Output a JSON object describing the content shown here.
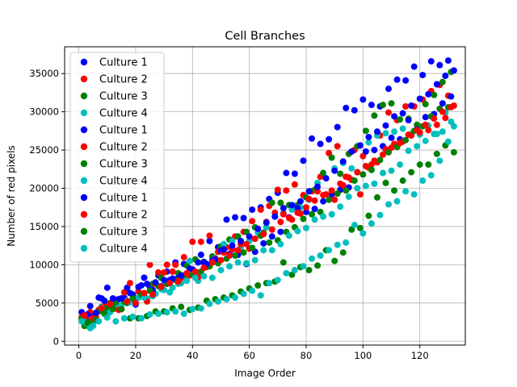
{
  "chart_data": {
    "type": "scatter",
    "title": "Cell Branches",
    "xlabel": "Image Order",
    "ylabel": "Number of red pixels",
    "xlim": [
      -5,
      136
    ],
    "ylim": [
      -500,
      38500
    ],
    "xticks": [
      0,
      20,
      40,
      60,
      80,
      100,
      120
    ],
    "yticks": [
      0,
      5000,
      10000,
      15000,
      20000,
      25000,
      30000,
      35000
    ],
    "grid": true,
    "legend_position": "top-left",
    "series": [
      {
        "name": "Culture 1",
        "color": "#0000ff",
        "x": [
          1,
          4,
          7,
          10,
          13,
          16,
          19,
          22,
          25,
          28,
          31,
          34,
          37,
          40,
          43,
          46,
          49,
          52,
          55,
          58,
          61,
          64,
          67,
          70,
          73,
          76,
          79,
          82,
          85,
          88,
          91,
          94,
          97,
          100,
          103,
          106,
          109,
          112,
          115,
          118,
          121,
          124,
          127,
          130
        ],
        "y": [
          3800,
          4600,
          5700,
          7000,
          5400,
          5700,
          6100,
          7300,
          7100,
          8600,
          9100,
          10300,
          10100,
          9400,
          11300,
          13100,
          12300,
          15900,
          16200,
          16100,
          17200,
          17500,
          18600,
          19400,
          22000,
          21900,
          23600,
          26500,
          25800,
          26400,
          28000,
          30500,
          30200,
          31600,
          30900,
          30700,
          33000,
          34200,
          34100,
          35900,
          34800,
          36600,
          36100,
          36700
        ]
      },
      {
        "name": "Culture 2",
        "color": "#ff0000",
        "x": [
          1,
          4,
          7,
          10,
          13,
          16,
          19,
          22,
          25,
          28,
          31,
          34,
          37,
          40,
          43,
          46,
          49,
          52,
          55,
          58,
          61,
          64,
          67,
          70,
          73,
          76,
          79,
          82,
          85,
          88,
          91,
          94,
          97,
          100,
          103,
          106,
          109,
          112,
          115,
          118,
          121,
          124,
          127,
          130
        ],
        "y": [
          3100,
          3800,
          4100,
          4700,
          4600,
          6400,
          5300,
          5900,
          10000,
          9000,
          10000,
          10000,
          11000,
          13000,
          13000,
          13800,
          11700,
          12300,
          13700,
          14300,
          15700,
          17200,
          17700,
          19800,
          19700,
          20500,
          19100,
          19600,
          21500,
          24600,
          25500,
          21500,
          25000,
          24200,
          23100,
          26900,
          29900,
          28900,
          30700,
          30700,
          31600,
          32700,
          33500,
          32100
        ]
      },
      {
        "name": "Culture 3",
        "color": "#008000",
        "x": [
          2,
          5,
          8,
          11,
          14,
          17,
          20,
          23,
          26,
          29,
          32,
          35,
          38,
          41,
          44,
          47,
          50,
          53,
          56,
          59,
          62,
          65,
          68,
          71,
          74,
          77,
          80,
          83,
          86,
          89,
          92,
          95,
          98,
          101,
          104,
          107,
          110,
          113,
          116,
          119,
          122,
          125,
          128,
          131
        ],
        "y": [
          2000,
          2400,
          4500,
          5000,
          4300,
          5000,
          5500,
          6000,
          7500,
          8300,
          7700,
          8900,
          9900,
          10700,
          10400,
          11100,
          12400,
          13300,
          13700,
          14300,
          14900,
          14200,
          18100,
          18100,
          17800,
          17800,
          18800,
          19800,
          22000,
          24000,
          21900,
          24500,
          25500,
          27500,
          29500,
          30900,
          31100,
          29000,
          29100,
          28300,
          31000,
          32200,
          33900,
          35200
        ]
      },
      {
        "name": "Culture 4",
        "color": "#00bfbf",
        "x": [
          3,
          6,
          9,
          12,
          15,
          18,
          21,
          24,
          27,
          30,
          33,
          36,
          39,
          42,
          45,
          48,
          51,
          54,
          57,
          60,
          63,
          66,
          69,
          72,
          75,
          78,
          81,
          84,
          87,
          90,
          93,
          96,
          99,
          102,
          105,
          108,
          111,
          114,
          117,
          120,
          123,
          126,
          129,
          132
        ],
        "y": [
          2300,
          2700,
          4100,
          4400,
          4700,
          5100,
          5700,
          5600,
          6200,
          6700,
          7000,
          7600,
          10500,
          7900,
          10000,
          10900,
          12700,
          13100,
          12300,
          13100,
          14200,
          14900,
          16300,
          16800,
          17200,
          17500,
          18500,
          20700,
          21300,
          22600,
          23300,
          22600,
          25600,
          26000,
          26900,
          27200,
          27400,
          27800,
          27100,
          27000,
          28200,
          27100,
          29900,
          28100
        ]
      },
      {
        "name": "Culture 1",
        "color": "#0000ff",
        "x": [
          2,
          5,
          8,
          11,
          14,
          17,
          20,
          23,
          26,
          29,
          32,
          35,
          38,
          41,
          44,
          47,
          50,
          53,
          56,
          59,
          62,
          65,
          68,
          71,
          74,
          77,
          80,
          83,
          86,
          89,
          92,
          95,
          98,
          101,
          104,
          107,
          110,
          113,
          116,
          119,
          122,
          125,
          128,
          131
        ],
        "y": [
          3200,
          3200,
          5600,
          4200,
          5500,
          7000,
          4800,
          8300,
          6700,
          7200,
          8000,
          8300,
          8800,
          9100,
          10300,
          10600,
          11800,
          11400,
          11300,
          10100,
          11700,
          12800,
          13700,
          14300,
          16200,
          17400,
          16900,
          17300,
          18300,
          19200,
          19800,
          20100,
          22100,
          24800,
          25000,
          25500,
          26600,
          26400,
          28900,
          27700,
          29300,
          29700,
          31100,
          32000
        ]
      },
      {
        "name": "Culture 2",
        "color": "#ff0000",
        "x": [
          3,
          6,
          9,
          12,
          15,
          18,
          21,
          24,
          27,
          30,
          33,
          36,
          39,
          42,
          45,
          48,
          51,
          54,
          57,
          60,
          63,
          66,
          69,
          72,
          75,
          78,
          81,
          84,
          87,
          90,
          93,
          96,
          99,
          102,
          105,
          108,
          111,
          114,
          117,
          120,
          123,
          126,
          129,
          132
        ],
        "y": [
          2800,
          3200,
          4600,
          5300,
          4200,
          7600,
          6500,
          5200,
          7500,
          9000,
          9100,
          8300,
          8600,
          8400,
          9700,
          10800,
          11600,
          12000,
          12700,
          12100,
          14700,
          15600,
          16800,
          16600,
          15900,
          16700,
          18600,
          19600,
          19200,
          18500,
          20400,
          21100,
          19200,
          22700,
          23400,
          25100,
          25800,
          26100,
          26900,
          27300,
          27600,
          28300,
          29200,
          30800
        ]
      },
      {
        "name": "Culture 3",
        "color": "#008000",
        "x": [
          1,
          4,
          7,
          10,
          13,
          16,
          19,
          22,
          25,
          28,
          31,
          34,
          37,
          40,
          43,
          46,
          49,
          52,
          55,
          58,
          61,
          64,
          67,
          70,
          73,
          76,
          79,
          82,
          85,
          88,
          91,
          94,
          97,
          100,
          103,
          106,
          109,
          112,
          115,
          118,
          121,
          124,
          127,
          130
        ],
        "y": [
          2900,
          2600,
          3900,
          4300,
          4900,
          5200,
          5600,
          6100,
          6600,
          7200,
          7500,
          8000,
          8600,
          8700,
          9100,
          9800,
          10200,
          10800,
          11200,
          11600,
          12200,
          13800,
          12900,
          13200,
          14300,
          14900,
          16000,
          16600,
          16900,
          18500,
          19300,
          19700,
          21000,
          21800,
          22400,
          23700,
          24700,
          25400,
          26300,
          27500,
          28100,
          29400,
          30400,
          30600
        ]
      },
      {
        "name": "Culture 4",
        "color": "#00bfbf",
        "x": [
          2,
          5,
          8,
          11,
          14,
          17,
          20,
          23,
          26,
          29,
          32,
          35,
          38,
          41,
          44,
          47,
          50,
          53,
          56,
          59,
          62,
          65,
          68,
          71,
          74,
          77,
          80,
          83,
          86,
          89,
          92,
          95,
          98,
          101,
          104,
          107,
          110,
          113,
          116,
          119,
          122,
          125,
          128,
          131
        ],
        "y": [
          2500,
          2000,
          4400,
          3800,
          4400,
          5300,
          5000,
          5700,
          5900,
          6800,
          6400,
          7500,
          7900,
          8300,
          8500,
          8300,
          9300,
          9800,
          10300,
          10200,
          10600,
          11900,
          11900,
          12700,
          13800,
          14400,
          14800,
          15900,
          16300,
          16600,
          17600,
          18900,
          20000,
          20300,
          20600,
          22000,
          22300,
          23100,
          24900,
          25500,
          26200,
          27100,
          27400,
          28700
        ]
      },
      {
        "name": "Culture 1",
        "color": "#0000ff",
        "x": [
          3,
          6,
          9,
          12,
          15,
          18,
          21,
          24,
          27,
          30,
          33,
          36,
          39,
          42,
          45,
          48,
          51,
          54,
          57,
          60,
          63,
          66,
          69,
          72,
          75,
          78,
          81,
          84,
          87,
          90,
          93,
          96,
          99,
          102,
          105,
          108,
          111,
          114,
          117,
          120,
          123,
          126,
          129,
          132
        ],
        "y": [
          3500,
          3700,
          5300,
          5600,
          5600,
          6300,
          7100,
          7500,
          7700,
          8000,
          8200,
          8600,
          9500,
          10300,
          10100,
          10700,
          12000,
          12500,
          13100,
          13700,
          14700,
          15500,
          16300,
          17400,
          17800,
          18300,
          19600,
          20200,
          21300,
          22300,
          23500,
          24800,
          25600,
          26700,
          27400,
          28200,
          29400,
          29800,
          30800,
          31700,
          32300,
          33600,
          34700,
          35400
        ]
      },
      {
        "name": "Culture 2",
        "color": "#ff0000",
        "x": [
          2,
          5,
          8,
          11,
          14,
          17,
          20,
          23,
          26,
          29,
          32,
          35,
          38,
          41,
          44,
          47,
          50,
          53,
          56,
          59,
          62,
          65,
          68,
          71,
          74,
          77,
          80,
          83,
          86,
          89,
          92,
          95,
          98,
          101,
          104,
          107,
          110,
          113,
          116,
          119,
          122,
          125,
          128,
          131
        ],
        "y": [
          3400,
          3000,
          4300,
          4800,
          4100,
          5200,
          5000,
          6300,
          6100,
          7100,
          7600,
          7800,
          8900,
          9100,
          9600,
          10300,
          10600,
          11200,
          11900,
          12700,
          13400,
          14000,
          14600,
          15600,
          16100,
          16800,
          17500,
          18400,
          19100,
          19700,
          20600,
          21400,
          22100,
          22900,
          23600,
          24400,
          25300,
          25900,
          27000,
          27600,
          28300,
          29100,
          30000,
          30600
        ]
      },
      {
        "name": "Culture 3",
        "color": "#008000",
        "x": [
          3,
          6,
          9,
          12,
          15,
          18,
          21,
          24,
          27,
          30,
          33,
          36,
          39,
          42,
          45,
          48,
          51,
          54,
          57,
          60,
          63,
          66,
          69,
          72,
          75,
          78,
          81,
          84,
          87,
          90,
          93,
          96,
          99,
          102,
          105,
          108,
          111,
          114,
          117,
          120,
          123,
          126,
          129,
          132
        ],
        "y": [
          2400,
          2800,
          3600,
          4200,
          4200,
          3000,
          3000,
          3300,
          3900,
          3900,
          4300,
          4500,
          4100,
          4400,
          5300,
          5500,
          5700,
          6000,
          6500,
          6900,
          7300,
          7600,
          7800,
          10300,
          8700,
          9700,
          9300,
          9900,
          11900,
          10500,
          11600,
          14600,
          14800,
          16400,
          18800,
          20700,
          19700,
          21000,
          22100,
          23100,
          23100,
          24500,
          25600,
          24700
        ]
      },
      {
        "name": "Culture 4",
        "color": "#00bfbf",
        "x": [
          1,
          4,
          7,
          10,
          13,
          16,
          19,
          22,
          25,
          28,
          31,
          34,
          37,
          40,
          43,
          46,
          49,
          52,
          55,
          58,
          61,
          64,
          67,
          70,
          73,
          76,
          79,
          82,
          85,
          88,
          91,
          94,
          97,
          100,
          103,
          106,
          109,
          112,
          115,
          118,
          121,
          124,
          127,
          130
        ],
        "y": [
          2600,
          1700,
          2600,
          3100,
          2600,
          3000,
          3200,
          3000,
          3500,
          3600,
          3800,
          3900,
          3600,
          4200,
          4300,
          4900,
          5200,
          5500,
          5700,
          6200,
          6600,
          6000,
          7600,
          8000,
          8900,
          9300,
          9800,
          10800,
          11200,
          11900,
          12600,
          12900,
          15200,
          14100,
          15400,
          16500,
          17900,
          18300,
          19600,
          19200,
          21000,
          21700,
          23600,
          26100
        ]
      }
    ]
  }
}
